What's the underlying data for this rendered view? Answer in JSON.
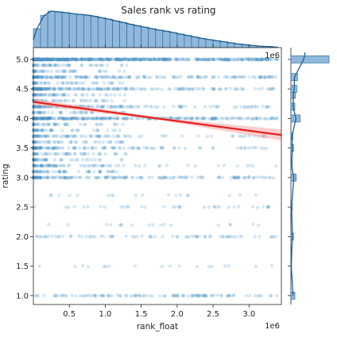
{
  "chart_data": {
    "type": "scatter",
    "title": "Sales rank vs rating",
    "xlabel": "rank_float",
    "ylabel": "rating",
    "x_multiplier_label": "1e6",
    "xlim": [
      0,
      3.45
    ],
    "ylim": [
      0.85,
      5.2
    ],
    "x_ticks": [
      0.5,
      1.0,
      1.5,
      2.0,
      2.5,
      3.0
    ],
    "x_tick_labels": [
      "0.5",
      "1.0",
      "1.5",
      "2.0",
      "2.5",
      "3.0"
    ],
    "y_ticks": [
      1.0,
      1.5,
      2.0,
      2.5,
      3.0,
      3.5,
      4.0,
      4.5,
      5.0
    ],
    "y_tick_labels": [
      "1.0",
      "1.5",
      "2.0",
      "2.5",
      "3.0",
      "3.5",
      "4.0",
      "4.5",
      "5.0"
    ],
    "point_color": "#4a90c4",
    "regression": {
      "color": "#e8211e",
      "band_color": "#f4a6a6",
      "x": [
        0,
        3.45
      ],
      "y": [
        4.28,
        3.72
      ]
    },
    "rating_levels": [
      1.0,
      1.5,
      2.0,
      2.2,
      2.5,
      2.7,
      3.0,
      3.2,
      3.5,
      3.7,
      4.0,
      4.2,
      4.5,
      4.7,
      5.0
    ],
    "top_hist": {
      "bin_width": 0.1,
      "start": 0.0,
      "counts": [
        52,
        88,
        100,
        98,
        96,
        93,
        91,
        89,
        86,
        82,
        78,
        73,
        69,
        64,
        60,
        56,
        52,
        48,
        45,
        41,
        37,
        33,
        29,
        25,
        22,
        19,
        16,
        13,
        10,
        8,
        6,
        4,
        3,
        2
      ]
    },
    "right_hist": {
      "bins": [
        {
          "y": 1.0,
          "count": 6
        },
        {
          "y": 1.5,
          "count": 1
        },
        {
          "y": 2.0,
          "count": 4
        },
        {
          "y": 2.5,
          "count": 2
        },
        {
          "y": 3.0,
          "count": 8
        },
        {
          "y": 3.2,
          "count": 2
        },
        {
          "y": 3.5,
          "count": 4
        },
        {
          "y": 3.7,
          "count": 3
        },
        {
          "y": 4.0,
          "count": 14
        },
        {
          "y": 4.2,
          "count": 6
        },
        {
          "y": 4.4,
          "count": 7
        },
        {
          "y": 4.5,
          "count": 9
        },
        {
          "y": 4.7,
          "count": 10
        },
        {
          "y": 5.0,
          "count": 58
        }
      ]
    }
  }
}
